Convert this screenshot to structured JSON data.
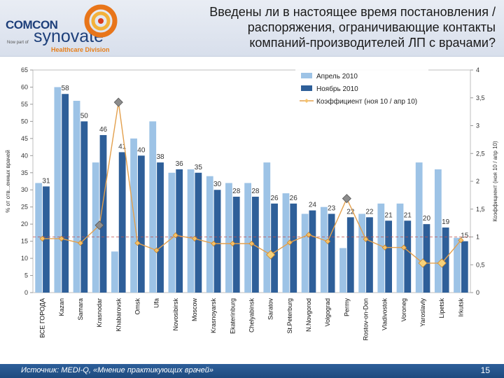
{
  "header": {
    "title_line1": "Введены ли в настоящее время постановления /",
    "title_line2": "распоряжения, ограничивающие контакты",
    "title_line3": "компаний-производителей ЛП с врачами?",
    "logo_comcon": "COMCON",
    "logo_newpart": "Now part of",
    "logo_synovate": "synovate",
    "logo_division": "Healthcare Division"
  },
  "footer": {
    "source": "Источник: MEDI-Q, «Мнение практикующих врачей»",
    "page": "15"
  },
  "colors": {
    "april": "#9dc3e6",
    "november": "#2e5f99",
    "coef_line": "#e3a04d",
    "coef_marker_normal": "#f5c26b",
    "highlight_high": "#8c8c8c",
    "refline": "#c0504d"
  },
  "chart_data": {
    "type": "bar",
    "categories": [
      "ВСЕ ГОРОДА",
      "Kazan",
      "Samara",
      "Krasnodar",
      "Khabarovsk",
      "Omsk",
      "Ufa",
      "Novosibirsk",
      "Moscow",
      "Krasnoyarsk",
      "Ekaterinburg",
      "Chelyabinsk",
      "Saratov",
      "St.Peterburg",
      "N.Novgorod",
      "Volgograd",
      "Permy",
      "Rostov-on-Don",
      "Vladivostok",
      "Voroneg",
      "Yaroslavly",
      "Lipetsk",
      "Irkutsk"
    ],
    "series": [
      {
        "name": "Апрель 2010",
        "values": [
          32,
          60,
          56,
          38,
          12,
          45,
          50,
          35,
          36,
          34,
          32,
          32,
          38,
          29,
          23,
          25,
          13,
          23,
          26,
          26,
          38,
          36,
          16
        ]
      },
      {
        "name": "Ноябрь 2010",
        "values": [
          31,
          58,
          50,
          46,
          41,
          40,
          38,
          36,
          35,
          30,
          28,
          28,
          26,
          26,
          24,
          23,
          22,
          22,
          21,
          21,
          20,
          19,
          15
        ]
      }
    ],
    "bar_labels": [
      31,
      58,
      50,
      46,
      41,
      40,
      38,
      36,
      35,
      30,
      28,
      28,
      26,
      26,
      24,
      23,
      22,
      22,
      21,
      21,
      20,
      19,
      15
    ],
    "coef_series": {
      "name": "Коэффициент (ноя 10 / апр 10)",
      "values": [
        0.97,
        0.97,
        0.89,
        1.21,
        3.42,
        0.89,
        0.76,
        1.03,
        0.97,
        0.88,
        0.88,
        0.88,
        0.68,
        0.9,
        1.04,
        0.92,
        1.69,
        0.96,
        0.81,
        0.81,
        0.53,
        0.53,
        0.94
      ]
    },
    "coef_highlight_high": [
      4,
      16,
      3
    ],
    "coef_highlight_low": [
      12,
      20,
      21
    ],
    "left_axis": {
      "label": "% от отв...енных врачей",
      "min": 0,
      "max": 65,
      "ticks": [
        0,
        5,
        10,
        15,
        20,
        25,
        30,
        35,
        40,
        45,
        50,
        55,
        60,
        65
      ]
    },
    "right_axis": {
      "label": "Коэффициент (ноя 10 / апр 10)",
      "min": 0,
      "max": 4,
      "ticks": [
        "0",
        "0,5",
        "1",
        "1,5",
        "2",
        "2,5",
        "3",
        "3,5",
        "4"
      ]
    },
    "reference_line": 1,
    "legend": [
      "Апрель 2010",
      "Ноябрь 2010",
      "Коэффициент (ноя 10 / апр 10)"
    ]
  }
}
